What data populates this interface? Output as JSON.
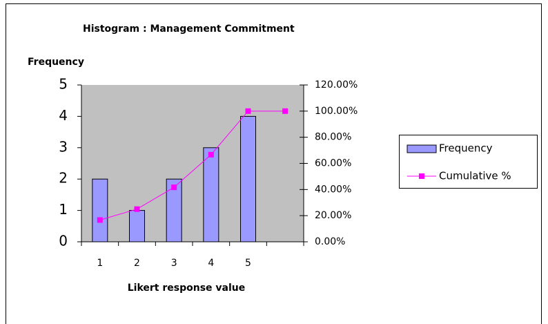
{
  "chart_data": {
    "type": "bar",
    "title": "Histogram : Management Commitment",
    "ylabel": "Frequency",
    "xlabel": "Likert response value",
    "categories": [
      "1",
      "2",
      "3",
      "4",
      "5",
      null
    ],
    "series": [
      {
        "name": "Frequency",
        "type": "bar",
        "color": "#9999ff",
        "values": [
          2,
          1,
          2,
          3,
          4,
          0
        ]
      },
      {
        "name": "Cumulative %",
        "type": "line",
        "axis": "y2",
        "color": "#ff00ff",
        "values": [
          16.67,
          25,
          41.67,
          66.67,
          100,
          100
        ]
      }
    ],
    "ylim": [
      0,
      5
    ],
    "yticks": [
      0,
      1,
      2,
      3,
      4,
      5
    ],
    "y2lim": [
      0,
      120
    ],
    "y2ticks": [
      {
        "value": 0,
        "label": "0.00%"
      },
      {
        "value": 20,
        "label": "20.00%"
      },
      {
        "value": 40,
        "label": "40.00%"
      },
      {
        "value": 60,
        "label": "60.00%"
      },
      {
        "value": 80,
        "label": "80.00%"
      },
      {
        "value": 100,
        "label": "100.00%"
      },
      {
        "value": 120,
        "label": "120.00%"
      }
    ],
    "plot_background": "#c0c0c0",
    "legend": "right"
  }
}
